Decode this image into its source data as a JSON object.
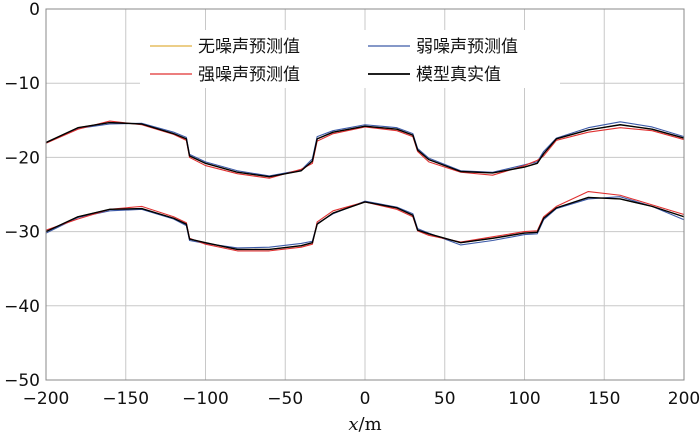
{
  "chart_data": {
    "type": "line",
    "xlabel_var": "x",
    "xlabel_unit": "/m",
    "xlim": [
      -200,
      200
    ],
    "ylim": [
      -50,
      0
    ],
    "xticks": [
      -200,
      -150,
      -100,
      -50,
      0,
      50,
      100,
      150,
      200
    ],
    "yticks": [
      0,
      -10,
      -20,
      -30,
      -40,
      -50
    ],
    "xtick_labels": [
      "−200",
      "−150",
      "−100",
      "−50",
      "0",
      "50",
      "100",
      "150",
      "200"
    ],
    "ytick_labels": [
      "0",
      "−10",
      "−20",
      "−30",
      "−40",
      "−50"
    ],
    "grid": true,
    "legend_position": "top-center",
    "series": [
      {
        "name": "无噪声预测值",
        "color": "#e0b040",
        "layers": [
          [
            [
              -200,
              -18
            ],
            [
              -180,
              -16
            ],
            [
              -160,
              -15.3
            ],
            [
              -140,
              -15.5
            ],
            [
              -120,
              -16.8
            ],
            [
              -112,
              -17.5
            ],
            [
              -110,
              -19.8
            ],
            [
              -100,
              -20.8
            ],
            [
              -80,
              -22
            ],
            [
              -60,
              -22.6
            ],
            [
              -40,
              -21.8
            ],
            [
              -33,
              -20.5
            ],
            [
              -30,
              -17.5
            ],
            [
              -20,
              -16.6
            ],
            [
              0,
              -15.8
            ],
            [
              20,
              -16.2
            ],
            [
              30,
              -17
            ],
            [
              33,
              -19
            ],
            [
              40,
              -20.3
            ],
            [
              60,
              -21.9
            ],
            [
              80,
              -22.1
            ],
            [
              100,
              -21.3
            ],
            [
              108,
              -20.8
            ],
            [
              112,
              -19.5
            ],
            [
              120,
              -17.5
            ],
            [
              140,
              -16.3
            ],
            [
              160,
              -15.6
            ],
            [
              180,
              -16.2
            ],
            [
              200,
              -17.4
            ]
          ],
          [
            [
              -200,
              -30
            ],
            [
              -180,
              -28
            ],
            [
              -160,
              -27
            ],
            [
              -140,
              -26.9
            ],
            [
              -120,
              -28.2
            ],
            [
              -112,
              -29
            ],
            [
              -110,
              -31
            ],
            [
              -100,
              -31.5
            ],
            [
              -80,
              -32.4
            ],
            [
              -60,
              -32.4
            ],
            [
              -40,
              -31.9
            ],
            [
              -33,
              -31.5
            ],
            [
              -30,
              -29
            ],
            [
              -20,
              -27.5
            ],
            [
              0,
              -26
            ],
            [
              20,
              -26.8
            ],
            [
              30,
              -27.8
            ],
            [
              33,
              -29.8
            ],
            [
              40,
              -30.3
            ],
            [
              60,
              -31.5
            ],
            [
              80,
              -30.9
            ],
            [
              100,
              -30.2
            ],
            [
              108,
              -30.1
            ],
            [
              112,
              -28.2
            ],
            [
              120,
              -26.8
            ],
            [
              140,
              -25.4
            ],
            [
              160,
              -25.6
            ],
            [
              180,
              -26.6
            ],
            [
              200,
              -28
            ]
          ]
        ]
      },
      {
        "name": "弱噪声预测值",
        "color": "#3c5aa8",
        "layers": [
          [
            [
              -200,
              -18
            ],
            [
              -180,
              -16.1
            ],
            [
              -160,
              -15.5
            ],
            [
              -140,
              -15.4
            ],
            [
              -120,
              -16.6
            ],
            [
              -112,
              -17.3
            ],
            [
              -110,
              -19.6
            ],
            [
              -100,
              -20.6
            ],
            [
              -80,
              -21.8
            ],
            [
              -60,
              -22.5
            ],
            [
              -40,
              -21.7
            ],
            [
              -33,
              -20.2
            ],
            [
              -30,
              -17.2
            ],
            [
              -20,
              -16.4
            ],
            [
              0,
              -15.6
            ],
            [
              20,
              -16
            ],
            [
              30,
              -16.8
            ],
            [
              33,
              -18.8
            ],
            [
              40,
              -20.1
            ],
            [
              60,
              -21.8
            ],
            [
              80,
              -22
            ],
            [
              100,
              -21
            ],
            [
              108,
              -20.6
            ],
            [
              112,
              -19.2
            ],
            [
              120,
              -17.4
            ],
            [
              140,
              -16
            ],
            [
              160,
              -15.2
            ],
            [
              180,
              -15.9
            ],
            [
              200,
              -17.2
            ]
          ],
          [
            [
              -200,
              -30.2
            ],
            [
              -180,
              -28.1
            ],
            [
              -160,
              -27.2
            ],
            [
              -140,
              -27
            ],
            [
              -120,
              -28.3
            ],
            [
              -112,
              -29.2
            ],
            [
              -110,
              -31.2
            ],
            [
              -100,
              -31.6
            ],
            [
              -80,
              -32.2
            ],
            [
              -60,
              -32.1
            ],
            [
              -40,
              -31.6
            ],
            [
              -33,
              -31.3
            ],
            [
              -30,
              -28.9
            ],
            [
              -20,
              -27.6
            ],
            [
              0,
              -25.9
            ],
            [
              20,
              -26.7
            ],
            [
              30,
              -27.6
            ],
            [
              33,
              -29.6
            ],
            [
              40,
              -30.2
            ],
            [
              60,
              -31.8
            ],
            [
              80,
              -31.2
            ],
            [
              100,
              -30.4
            ],
            [
              108,
              -30.3
            ],
            [
              112,
              -28.4
            ],
            [
              120,
              -26.9
            ],
            [
              140,
              -25.6
            ],
            [
              160,
              -25.3
            ],
            [
              180,
              -26.6
            ],
            [
              200,
              -28.4
            ]
          ]
        ]
      },
      {
        "name": "强噪声预测值",
        "color": "#e03030",
        "layers": [
          [
            [
              -200,
              -18.1
            ],
            [
              -180,
              -16.2
            ],
            [
              -160,
              -15.1
            ],
            [
              -140,
              -15.6
            ],
            [
              -120,
              -16.9
            ],
            [
              -112,
              -17.7
            ],
            [
              -110,
              -20
            ],
            [
              -100,
              -21.1
            ],
            [
              -80,
              -22.2
            ],
            [
              -60,
              -22.8
            ],
            [
              -40,
              -21.6
            ],
            [
              -33,
              -20.8
            ],
            [
              -30,
              -17.8
            ],
            [
              -20,
              -16.8
            ],
            [
              0,
              -15.9
            ],
            [
              20,
              -16.4
            ],
            [
              30,
              -17.2
            ],
            [
              33,
              -19.2
            ],
            [
              40,
              -20.6
            ],
            [
              60,
              -22
            ],
            [
              80,
              -22.4
            ],
            [
              100,
              -21.1
            ],
            [
              108,
              -20.4
            ],
            [
              112,
              -19.8
            ],
            [
              120,
              -17.7
            ],
            [
              140,
              -16.6
            ],
            [
              160,
              -16
            ],
            [
              180,
              -16.4
            ],
            [
              200,
              -17.6
            ]
          ],
          [
            [
              -200,
              -29.8
            ],
            [
              -180,
              -28.3
            ],
            [
              -160,
              -27
            ],
            [
              -140,
              -26.6
            ],
            [
              -120,
              -28
            ],
            [
              -112,
              -28.8
            ],
            [
              -110,
              -30.9
            ],
            [
              -100,
              -31.7
            ],
            [
              -80,
              -32.6
            ],
            [
              -60,
              -32.6
            ],
            [
              -40,
              -32.1
            ],
            [
              -33,
              -31.7
            ],
            [
              -30,
              -28.7
            ],
            [
              -20,
              -27.2
            ],
            [
              0,
              -26
            ],
            [
              20,
              -27
            ],
            [
              30,
              -28
            ],
            [
              33,
              -29.9
            ],
            [
              40,
              -30.5
            ],
            [
              60,
              -31.4
            ],
            [
              80,
              -30.7
            ],
            [
              100,
              -30
            ],
            [
              108,
              -29.9
            ],
            [
              112,
              -28
            ],
            [
              120,
              -26.6
            ],
            [
              140,
              -24.6
            ],
            [
              160,
              -25.1
            ],
            [
              180,
              -26.4
            ],
            [
              200,
              -27.7
            ]
          ]
        ]
      },
      {
        "name": "模型真实值",
        "color": "#000000",
        "layers": [
          [
            [
              -200,
              -18
            ],
            [
              -180,
              -16
            ],
            [
              -160,
              -15.3
            ],
            [
              -140,
              -15.5
            ],
            [
              -120,
              -16.8
            ],
            [
              -112,
              -17.5
            ],
            [
              -110,
              -19.8
            ],
            [
              -100,
              -20.8
            ],
            [
              -80,
              -22
            ],
            [
              -60,
              -22.6
            ],
            [
              -40,
              -21.8
            ],
            [
              -33,
              -20.5
            ],
            [
              -30,
              -17.5
            ],
            [
              -20,
              -16.6
            ],
            [
              0,
              -15.8
            ],
            [
              20,
              -16.2
            ],
            [
              30,
              -17
            ],
            [
              33,
              -19
            ],
            [
              40,
              -20.3
            ],
            [
              60,
              -21.9
            ],
            [
              80,
              -22.1
            ],
            [
              100,
              -21.3
            ],
            [
              108,
              -20.8
            ],
            [
              112,
              -19.5
            ],
            [
              120,
              -17.5
            ],
            [
              140,
              -16.3
            ],
            [
              160,
              -15.6
            ],
            [
              180,
              -16.2
            ],
            [
              200,
              -17.4
            ]
          ],
          [
            [
              -200,
              -30
            ],
            [
              -180,
              -28
            ],
            [
              -160,
              -27
            ],
            [
              -140,
              -26.9
            ],
            [
              -120,
              -28.2
            ],
            [
              -112,
              -29
            ],
            [
              -110,
              -31
            ],
            [
              -100,
              -31.5
            ],
            [
              -80,
              -32.4
            ],
            [
              -60,
              -32.4
            ],
            [
              -40,
              -31.9
            ],
            [
              -33,
              -31.5
            ],
            [
              -30,
              -29
            ],
            [
              -20,
              -27.5
            ],
            [
              0,
              -26
            ],
            [
              20,
              -26.8
            ],
            [
              30,
              -27.8
            ],
            [
              33,
              -29.8
            ],
            [
              40,
              -30.3
            ],
            [
              60,
              -31.5
            ],
            [
              80,
              -30.9
            ],
            [
              100,
              -30.2
            ],
            [
              108,
              -30.1
            ],
            [
              112,
              -28.2
            ],
            [
              120,
              -26.8
            ],
            [
              140,
              -25.4
            ],
            [
              160,
              -25.6
            ],
            [
              180,
              -26.6
            ],
            [
              200,
              -28
            ]
          ]
        ]
      }
    ]
  }
}
